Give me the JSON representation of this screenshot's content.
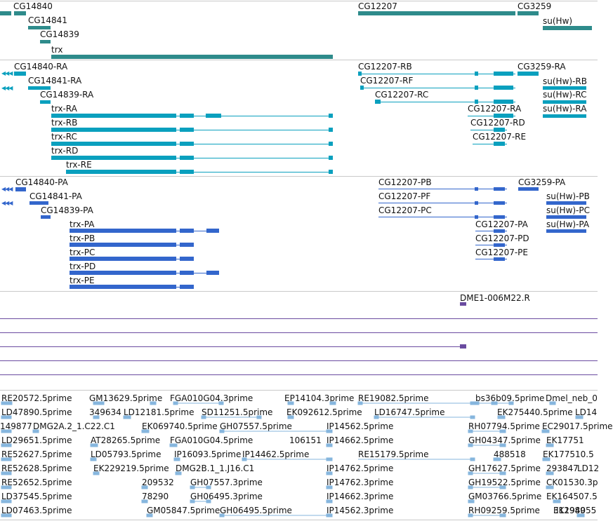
{
  "browser": {
    "colors": {
      "gene": "#2e8b8b",
      "transcript": "#0aa0be",
      "protein": "#3366cc",
      "clone": "#6a4ba0",
      "est": "#86b6de",
      "separator": "#c9c9c9"
    },
    "tracks": {
      "genes": [
        {
          "label": "CG14840",
          "strand": "minus"
        },
        {
          "label": "CG14841",
          "strand": "minus"
        },
        {
          "label": "CG14839",
          "strand": "plus"
        },
        {
          "label": "trx",
          "strand": "plus"
        },
        {
          "label": "CG12207",
          "strand": "plus"
        },
        {
          "label": "CG3259",
          "strand": "plus"
        },
        {
          "label": "su(Hw)",
          "strand": "plus"
        }
      ],
      "transcripts": [
        {
          "label": "CG14840-RA"
        },
        {
          "label": "CG14841-RA"
        },
        {
          "label": "CG14839-RA"
        },
        {
          "label": "trx-RA"
        },
        {
          "label": "trx-RB"
        },
        {
          "label": "trx-RC"
        },
        {
          "label": "trx-RD"
        },
        {
          "label": "trx-RE"
        },
        {
          "label": "CG12207-RB"
        },
        {
          "label": "CG12207-RF"
        },
        {
          "label": "CG12207-RC"
        },
        {
          "label": "CG12207-RA"
        },
        {
          "label": "CG12207-RD"
        },
        {
          "label": "CG12207-RE"
        },
        {
          "label": "CG3259-RA"
        },
        {
          "label": "su(Hw)-RB"
        },
        {
          "label": "su(Hw)-RC"
        },
        {
          "label": "su(Hw)-RA"
        }
      ],
      "proteins": [
        {
          "label": "CG14840-PA"
        },
        {
          "label": "CG14841-PA"
        },
        {
          "label": "CG14839-PA"
        },
        {
          "label": "trx-PA"
        },
        {
          "label": "trx-PB"
        },
        {
          "label": "trx-PC"
        },
        {
          "label": "trx-PD"
        },
        {
          "label": "trx-PE"
        },
        {
          "label": "CG12207-PB"
        },
        {
          "label": "CG12207-PF"
        },
        {
          "label": "CG12207-PC"
        },
        {
          "label": "CG12207-PA"
        },
        {
          "label": "CG12207-PD"
        },
        {
          "label": "CG12207-PE"
        },
        {
          "label": "CG3259-PA"
        },
        {
          "label": "su(Hw)-PB"
        },
        {
          "label": "su(Hw)-PC"
        },
        {
          "label": "su(Hw)-PA"
        }
      ],
      "clones": [
        {
          "label": "DME1-006M22.R"
        }
      ],
      "ests": [
        "RE20572.5prime",
        "GM13629.5prime",
        "FGA010G04.3prime",
        "EP14104.3prime",
        "RE19082.5prime",
        "bs36b09.5prime",
        "Dmel_neb_0",
        "LD47890.5prime",
        "349634",
        "LD12181.5prime",
        "SD11251.5prime",
        "EK092612.5prime",
        "LD16747.5prime",
        "EK275440.5prime",
        "LD14",
        "149877",
        "DMG2A.2_1.C22.C1",
        "EK069740.5prime",
        "GH07557.5prime",
        "IP14562.5prime",
        "RH07794.5prime",
        "EC29017.5prime",
        "LD29651.5prime",
        "AT28265.5prime",
        "FGA010G04.5prime",
        "106151",
        "IP14662.5prime",
        "GH04347.5prime",
        "EK17751",
        "RE52627.5prime",
        "LD05793.5prime",
        "IP16093.5prime",
        "IP14462.5prime",
        "488518",
        "EK177510.5",
        "RE52628.5prime",
        "EK229219.5prime",
        "DMG2B.1_1.J16.C1",
        "IP14762.5prime",
        "RE15179.5prime",
        "GH17627.5prime",
        "293847",
        "LD12",
        "RE52652.5prime",
        "209532",
        "GH07557.3prime",
        "IP14762.3prime",
        "GH19522.5prime",
        "CK01530.3p",
        "LD37545.5prime",
        "78290",
        "GH06495.3prime",
        "IP14662.3prime",
        "GM03766.5prime",
        "EK164507.5",
        "LD07463.5prime",
        "GM05847.5prime",
        "GH06495.5prime",
        "IP14562.3prime",
        "RH09259.5prime",
        "EK194055",
        "312989"
      ]
    }
  }
}
